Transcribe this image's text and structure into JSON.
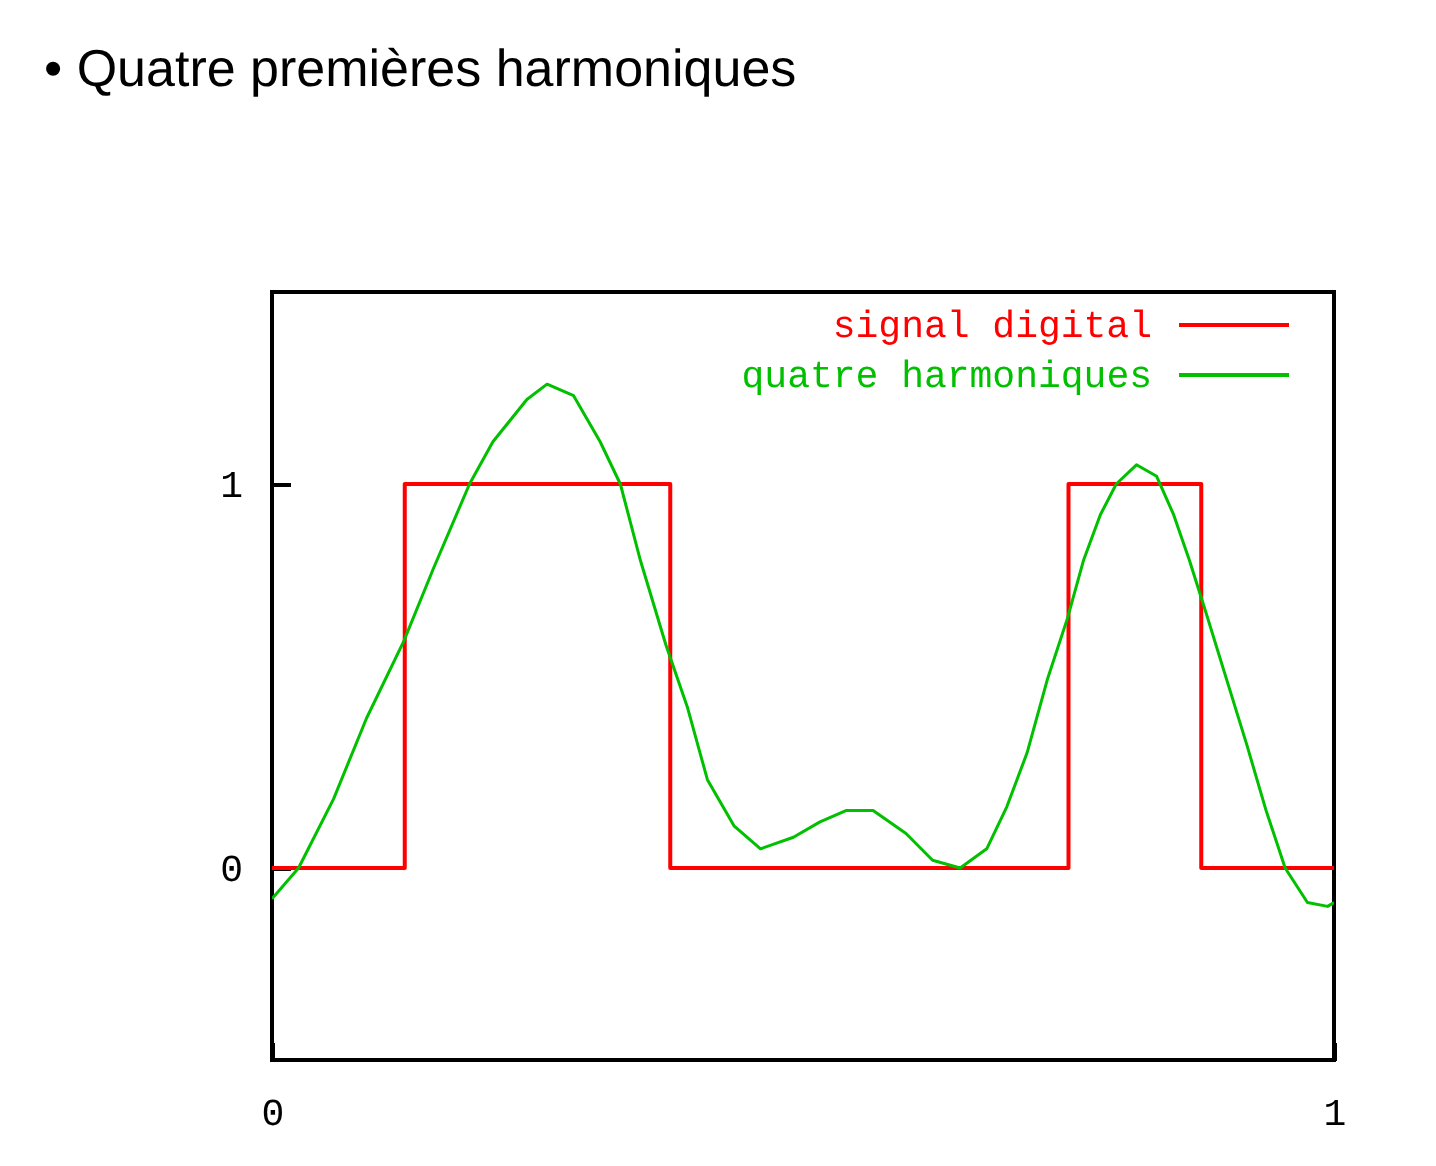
{
  "chart_data": {
    "type": "line",
    "title": "• Quatre premières harmoniques",
    "xlim": [
      0,
      1
    ],
    "xticks": [
      0,
      1
    ],
    "ylim": [
      -0.5,
      1.5
    ],
    "yticks": [
      0,
      1
    ],
    "legend": "top right",
    "series": [
      {
        "name": "signal digital",
        "type": "step",
        "color": "#ff0000",
        "x": [
          0,
          0.125,
          0.375,
          0.75,
          0.875,
          1
        ],
        "values": [
          0,
          1,
          0,
          1,
          0,
          0
        ]
      },
      {
        "name": "quatre harmoniques",
        "type": "line",
        "color": "#00c000",
        "x": [
          0,
          0.025,
          0.058,
          0.089,
          0.124,
          0.152,
          0.186,
          0.208,
          0.24,
          0.259,
          0.284,
          0.309,
          0.328,
          0.347,
          0.371,
          0.391,
          0.41,
          0.435,
          0.46,
          0.491,
          0.516,
          0.541,
          0.566,
          0.597,
          0.622,
          0.648,
          0.673,
          0.692,
          0.711,
          0.73,
          0.749,
          0.764,
          0.78,
          0.795,
          0.814,
          0.833,
          0.849,
          0.864,
          0.88,
          0.899,
          0.918,
          0.936,
          0.954,
          0.975,
          0.994,
          1
        ],
        "values": [
          -0.08,
          0,
          0.18,
          0.39,
          0.59,
          0.78,
          1.0,
          1.11,
          1.22,
          1.26,
          1.23,
          1.11,
          1.0,
          0.8,
          0.58,
          0.42,
          0.23,
          0.11,
          0.05,
          0.08,
          0.12,
          0.15,
          0.15,
          0.09,
          0.02,
          0,
          0.05,
          0.16,
          0.3,
          0.49,
          0.65,
          0.8,
          0.92,
          1.0,
          1.05,
          1.02,
          0.92,
          0.8,
          0.66,
          0.49,
          0.32,
          0.15,
          0,
          -0.09,
          -0.1,
          -0.09
        ]
      }
    ]
  }
}
